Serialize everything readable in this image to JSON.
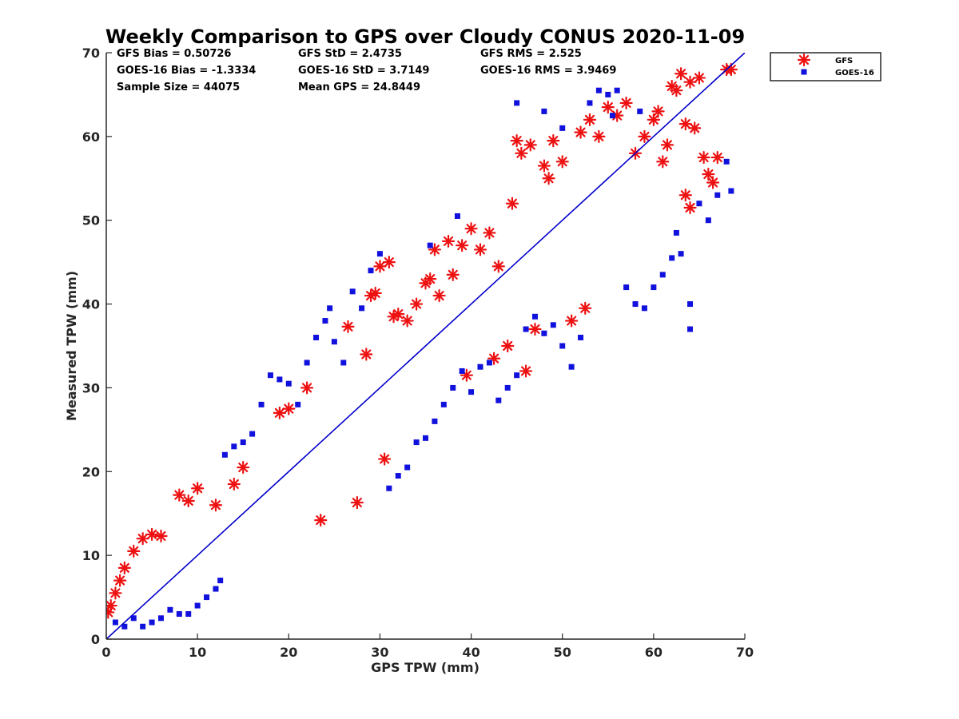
{
  "chart_data": {
    "type": "scatter",
    "title": "Weekly Comparison to GPS over Cloudy CONUS 2020-11-09",
    "xlabel": "GPS TPW (mm)",
    "ylabel": "Measured TPW (mm)",
    "xlim": [
      0,
      70
    ],
    "ylim": [
      0,
      70
    ],
    "xticks": [
      "0",
      "10",
      "20",
      "30",
      "40",
      "50",
      "60",
      "70"
    ],
    "yticks": [
      "0",
      "10",
      "20",
      "30",
      "40",
      "50",
      "60",
      "70"
    ],
    "grid": false,
    "legend_position": "outside top-right",
    "reference_line": {
      "name": "1:1 line",
      "x": [
        0,
        70
      ],
      "y": [
        0,
        70
      ],
      "color": "#0000cc"
    },
    "stats": [
      [
        "GFS Bias = 0.50726",
        "GFS StD = 2.4735",
        "GFS RMS = 2.525"
      ],
      [
        "GOES-16 Bias = -1.3334",
        "GOES-16 StD = 3.7149",
        "GOES-16 RMS = 3.9469"
      ],
      [
        "Sample Size = 44075",
        "Mean GPS = 24.8449",
        ""
      ]
    ],
    "series": [
      {
        "name": "GFS",
        "marker": "asterisk",
        "color": "#ee1111",
        "points": [
          [
            0.2,
            3.2
          ],
          [
            0.5,
            4.0
          ],
          [
            1.0,
            5.5
          ],
          [
            1.5,
            7.0
          ],
          [
            2.0,
            8.5
          ],
          [
            3.0,
            10.5
          ],
          [
            4.0,
            12.0
          ],
          [
            5.0,
            12.5
          ],
          [
            6.0,
            12.3
          ],
          [
            8.0,
            17.2
          ],
          [
            9.0,
            16.5
          ],
          [
            10.0,
            18.0
          ],
          [
            12.0,
            16.0
          ],
          [
            14.0,
            18.5
          ],
          [
            15.0,
            20.5
          ],
          [
            19.0,
            27.0
          ],
          [
            20.0,
            27.5
          ],
          [
            22.0,
            30.0
          ],
          [
            23.5,
            14.2
          ],
          [
            26.5,
            37.3
          ],
          [
            27.5,
            16.3
          ],
          [
            28.5,
            34.0
          ],
          [
            29.0,
            41.0
          ],
          [
            29.5,
            41.3
          ],
          [
            30.0,
            44.5
          ],
          [
            30.5,
            21.5
          ],
          [
            31.0,
            45.0
          ],
          [
            31.5,
            38.5
          ],
          [
            32.0,
            38.8
          ],
          [
            33.0,
            38.0
          ],
          [
            34.0,
            40.0
          ],
          [
            35.0,
            42.5
          ],
          [
            35.5,
            43.0
          ],
          [
            36.0,
            46.5
          ],
          [
            36.5,
            41.0
          ],
          [
            37.5,
            47.5
          ],
          [
            38.0,
            43.5
          ],
          [
            39.0,
            47.0
          ],
          [
            39.5,
            31.5
          ],
          [
            40.0,
            49.0
          ],
          [
            41.0,
            46.5
          ],
          [
            42.0,
            48.5
          ],
          [
            42.5,
            33.5
          ],
          [
            43.0,
            44.5
          ],
          [
            44.0,
            35.0
          ],
          [
            44.5,
            52.0
          ],
          [
            45.0,
            59.5
          ],
          [
            45.5,
            58.0
          ],
          [
            46.0,
            32.0
          ],
          [
            46.5,
            59.0
          ],
          [
            47.0,
            37.0
          ],
          [
            48.0,
            56.5
          ],
          [
            48.5,
            55.0
          ],
          [
            49.0,
            59.5
          ],
          [
            50.0,
            57.0
          ],
          [
            51.0,
            38.0
          ],
          [
            52.0,
            60.5
          ],
          [
            52.5,
            39.5
          ],
          [
            53.0,
            62.0
          ],
          [
            54.0,
            60.0
          ],
          [
            55.0,
            63.5
          ],
          [
            56.0,
            62.5
          ],
          [
            57.0,
            64.0
          ],
          [
            58.0,
            58.0
          ],
          [
            59.0,
            60.0
          ],
          [
            60.0,
            62.0
          ],
          [
            60.5,
            63.0
          ],
          [
            61.0,
            57.0
          ],
          [
            61.5,
            59.0
          ],
          [
            62.0,
            66.0
          ],
          [
            62.5,
            65.5
          ],
          [
            63.0,
            67.5
          ],
          [
            63.5,
            61.5
          ],
          [
            64.0,
            66.5
          ],
          [
            64.5,
            61.0
          ],
          [
            65.0,
            67.0
          ],
          [
            65.5,
            57.5
          ],
          [
            66.0,
            55.5
          ],
          [
            66.5,
            54.5
          ],
          [
            67.0,
            57.5
          ],
          [
            68.0,
            68.0
          ],
          [
            68.5,
            68.0
          ],
          [
            64.0,
            51.5
          ],
          [
            63.5,
            53.0
          ]
        ]
      },
      {
        "name": "GOES-16",
        "marker": "square",
        "color": "#1111dd",
        "points": [
          [
            1.0,
            2.0
          ],
          [
            2.0,
            1.5
          ],
          [
            3.0,
            2.5
          ],
          [
            4.0,
            1.5
          ],
          [
            5.0,
            2.0
          ],
          [
            6.0,
            2.5
          ],
          [
            7.0,
            3.5
          ],
          [
            8.0,
            3.0
          ],
          [
            9.0,
            3.0
          ],
          [
            10.0,
            4.0
          ],
          [
            11.0,
            5.0
          ],
          [
            12.0,
            6.0
          ],
          [
            13.0,
            22.0
          ],
          [
            14.0,
            23.0
          ],
          [
            15.0,
            23.5
          ],
          [
            16.0,
            24.5
          ],
          [
            17.0,
            28.0
          ],
          [
            18.0,
            31.5
          ],
          [
            19.0,
            31.0
          ],
          [
            20.0,
            30.5
          ],
          [
            21.0,
            28.0
          ],
          [
            22.0,
            33.0
          ],
          [
            23.0,
            36.0
          ],
          [
            24.0,
            38.0
          ],
          [
            25.0,
            35.5
          ],
          [
            26.0,
            33.0
          ],
          [
            27.0,
            41.5
          ],
          [
            28.0,
            39.5
          ],
          [
            29.0,
            44.0
          ],
          [
            30.0,
            46.0
          ],
          [
            31.0,
            18.0
          ],
          [
            32.0,
            19.5
          ],
          [
            33.0,
            20.5
          ],
          [
            34.0,
            23.5
          ],
          [
            35.0,
            24.0
          ],
          [
            36.0,
            26.0
          ],
          [
            37.0,
            28.0
          ],
          [
            38.0,
            30.0
          ],
          [
            39.0,
            32.0
          ],
          [
            40.0,
            29.5
          ],
          [
            41.0,
            32.5
          ],
          [
            42.0,
            33.0
          ],
          [
            43.0,
            28.5
          ],
          [
            44.0,
            30.0
          ],
          [
            45.0,
            31.5
          ],
          [
            46.0,
            37.0
          ],
          [
            47.0,
            38.5
          ],
          [
            48.0,
            36.5
          ],
          [
            49.0,
            37.5
          ],
          [
            50.0,
            35.0
          ],
          [
            51.0,
            32.5
          ],
          [
            52.0,
            36.0
          ],
          [
            53.0,
            64.0
          ],
          [
            54.0,
            65.5
          ],
          [
            55.0,
            65.0
          ],
          [
            56.0,
            65.5
          ],
          [
            57.0,
            42.0
          ],
          [
            58.0,
            40.0
          ],
          [
            59.0,
            39.5
          ],
          [
            60.0,
            42.0
          ],
          [
            61.0,
            43.5
          ],
          [
            62.0,
            45.5
          ],
          [
            63.0,
            46.0
          ],
          [
            64.0,
            37.0
          ],
          [
            65.0,
            52.0
          ],
          [
            66.0,
            50.0
          ],
          [
            67.0,
            53.0
          ],
          [
            68.0,
            57.0
          ],
          [
            68.5,
            53.5
          ],
          [
            64.0,
            40.0
          ],
          [
            62.5,
            48.5
          ],
          [
            45.0,
            64.0
          ],
          [
            48.0,
            63.0
          ],
          [
            50.0,
            61.0
          ],
          [
            55.5,
            62.5
          ],
          [
            58.5,
            63.0
          ],
          [
            38.5,
            50.5
          ],
          [
            35.5,
            47.0
          ],
          [
            24.5,
            39.5
          ],
          [
            12.5,
            7.0
          ]
        ]
      }
    ]
  }
}
